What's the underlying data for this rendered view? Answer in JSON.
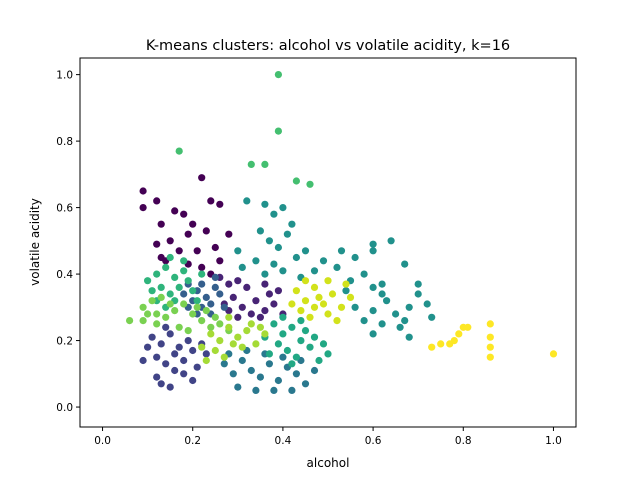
{
  "chart_data": {
    "type": "scatter",
    "title": "K-means clusters: alcohol vs volatile acidity, k=16",
    "xlabel": "alcohol",
    "ylabel": "volatile acidity",
    "xlim": [
      -0.05,
      1.05
    ],
    "ylim": [
      -0.06,
      1.05
    ],
    "xticks": [
      "0.0",
      "0.2",
      "0.4",
      "0.6",
      "0.8",
      "1.0"
    ],
    "yticks": [
      "0.0",
      "0.2",
      "0.4",
      "0.6",
      "0.8",
      "1.0"
    ],
    "grid": false,
    "legend": "none",
    "colormap": "viridis",
    "clusters": [
      {
        "color": "#440154",
        "points": [
          [
            0.09,
            0.65
          ],
          [
            0.12,
            0.62
          ],
          [
            0.09,
            0.6
          ],
          [
            0.13,
            0.55
          ],
          [
            0.16,
            0.59
          ],
          [
            0.18,
            0.58
          ],
          [
            0.22,
            0.69
          ],
          [
            0.24,
            0.62
          ],
          [
            0.2,
            0.55
          ],
          [
            0.26,
            0.61
          ],
          [
            0.15,
            0.5
          ],
          [
            0.19,
            0.52
          ],
          [
            0.23,
            0.53
          ],
          [
            0.25,
            0.48
          ],
          [
            0.21,
            0.47
          ],
          [
            0.13,
            0.45
          ],
          [
            0.17,
            0.47
          ],
          [
            0.12,
            0.49
          ],
          [
            0.28,
            0.52
          ],
          [
            0.26,
            0.44
          ],
          [
            0.19,
            0.43
          ],
          [
            0.22,
            0.42
          ],
          [
            0.24,
            0.4
          ],
          [
            0.14,
            0.44
          ]
        ]
      },
      {
        "color": "#482475",
        "points": [
          [
            0.26,
            0.39
          ],
          [
            0.28,
            0.37
          ],
          [
            0.3,
            0.38
          ],
          [
            0.32,
            0.36
          ],
          [
            0.29,
            0.33
          ],
          [
            0.27,
            0.31
          ],
          [
            0.31,
            0.3
          ],
          [
            0.34,
            0.32
          ],
          [
            0.36,
            0.29
          ],
          [
            0.38,
            0.31
          ],
          [
            0.35,
            0.27
          ],
          [
            0.37,
            0.34
          ],
          [
            0.33,
            0.28
          ],
          [
            0.4,
            0.28
          ],
          [
            0.39,
            0.35
          ],
          [
            0.36,
            0.37
          ],
          [
            0.3,
            0.27
          ],
          [
            0.28,
            0.29
          ]
        ]
      },
      {
        "color": "#414487",
        "points": [
          [
            0.11,
            0.21
          ],
          [
            0.13,
            0.19
          ],
          [
            0.15,
            0.22
          ],
          [
            0.17,
            0.18
          ],
          [
            0.19,
            0.2
          ],
          [
            0.16,
            0.16
          ],
          [
            0.12,
            0.15
          ],
          [
            0.14,
            0.13
          ],
          [
            0.18,
            0.14
          ],
          [
            0.2,
            0.17
          ],
          [
            0.22,
            0.19
          ],
          [
            0.1,
            0.18
          ],
          [
            0.14,
            0.24
          ],
          [
            0.16,
            0.11
          ],
          [
            0.12,
            0.09
          ],
          [
            0.18,
            0.1
          ],
          [
            0.21,
            0.12
          ],
          [
            0.13,
            0.07
          ],
          [
            0.23,
            0.16
          ],
          [
            0.2,
            0.08
          ],
          [
            0.09,
            0.14
          ],
          [
            0.15,
            0.06
          ]
        ]
      },
      {
        "color": "#355f8d",
        "points": [
          [
            0.19,
            0.37
          ],
          [
            0.21,
            0.35
          ],
          [
            0.23,
            0.33
          ],
          [
            0.25,
            0.36
          ],
          [
            0.22,
            0.3
          ],
          [
            0.2,
            0.32
          ],
          [
            0.24,
            0.28
          ],
          [
            0.26,
            0.34
          ],
          [
            0.18,
            0.34
          ],
          [
            0.22,
            0.37
          ],
          [
            0.27,
            0.3
          ],
          [
            0.24,
            0.31
          ],
          [
            0.21,
            0.28
          ],
          [
            0.25,
            0.39
          ],
          [
            0.19,
            0.3
          ]
        ]
      },
      {
        "color": "#2a788e",
        "points": [
          [
            0.27,
            0.13
          ],
          [
            0.29,
            0.1
          ],
          [
            0.31,
            0.14
          ],
          [
            0.33,
            0.11
          ],
          [
            0.35,
            0.09
          ],
          [
            0.37,
            0.13
          ],
          [
            0.39,
            0.08
          ],
          [
            0.41,
            0.12
          ],
          [
            0.43,
            0.1
          ],
          [
            0.3,
            0.06
          ],
          [
            0.34,
            0.05
          ],
          [
            0.38,
            0.05
          ],
          [
            0.45,
            0.07
          ],
          [
            0.47,
            0.11
          ],
          [
            0.36,
            0.16
          ],
          [
            0.32,
            0.17
          ],
          [
            0.28,
            0.16
          ],
          [
            0.4,
            0.15
          ],
          [
            0.44,
            0.14
          ],
          [
            0.42,
            0.05
          ]
        ]
      },
      {
        "color": "#21918c",
        "points": [
          [
            0.32,
            0.62
          ],
          [
            0.36,
            0.61
          ],
          [
            0.38,
            0.58
          ],
          [
            0.4,
            0.6
          ],
          [
            0.42,
            0.55
          ],
          [
            0.35,
            0.53
          ],
          [
            0.37,
            0.5
          ],
          [
            0.39,
            0.48
          ],
          [
            0.41,
            0.52
          ],
          [
            0.43,
            0.45
          ],
          [
            0.45,
            0.47
          ],
          [
            0.3,
            0.47
          ],
          [
            0.34,
            0.44
          ],
          [
            0.38,
            0.43
          ],
          [
            0.36,
            0.4
          ],
          [
            0.31,
            0.42
          ],
          [
            0.4,
            0.41
          ],
          [
            0.47,
            0.41
          ],
          [
            0.49,
            0.44
          ],
          [
            0.44,
            0.39
          ],
          [
            0.52,
            0.42
          ],
          [
            0.55,
            0.38
          ],
          [
            0.6,
            0.36
          ],
          [
            0.62,
            0.34
          ],
          [
            0.58,
            0.4
          ],
          [
            0.54,
            0.35
          ],
          [
            0.56,
            0.3
          ],
          [
            0.6,
            0.29
          ],
          [
            0.63,
            0.32
          ],
          [
            0.65,
            0.28
          ],
          [
            0.67,
            0.26
          ],
          [
            0.7,
            0.34
          ],
          [
            0.73,
            0.27
          ],
          [
            0.68,
            0.3
          ],
          [
            0.6,
            0.22
          ],
          [
            0.62,
            0.25
          ],
          [
            0.66,
            0.24
          ],
          [
            0.72,
            0.31
          ],
          [
            0.64,
            0.5
          ],
          [
            0.67,
            0.43
          ],
          [
            0.62,
            0.37
          ],
          [
            0.7,
            0.37
          ],
          [
            0.56,
            0.45
          ],
          [
            0.6,
            0.49
          ],
          [
            0.6,
            0.47
          ],
          [
            0.53,
            0.47
          ],
          [
            0.58,
            0.26
          ],
          [
            0.68,
            0.21
          ]
        ]
      },
      {
        "color": "#22a884",
        "points": [
          [
            0.38,
            0.25
          ],
          [
            0.4,
            0.22
          ],
          [
            0.42,
            0.24
          ],
          [
            0.44,
            0.2
          ],
          [
            0.46,
            0.18
          ],
          [
            0.41,
            0.17
          ],
          [
            0.39,
            0.19
          ],
          [
            0.43,
            0.15
          ],
          [
            0.45,
            0.23
          ],
          [
            0.47,
            0.21
          ],
          [
            0.37,
            0.16
          ],
          [
            0.49,
            0.19
          ],
          [
            0.48,
            0.14
          ],
          [
            0.36,
            0.21
          ],
          [
            0.42,
            0.13
          ],
          [
            0.5,
            0.16
          ],
          [
            0.44,
            0.26
          ],
          [
            0.4,
            0.27
          ]
        ]
      },
      {
        "color": "#2fb47c",
        "points": [
          [
            0.1,
            0.38
          ],
          [
            0.12,
            0.4
          ],
          [
            0.14,
            0.42
          ],
          [
            0.16,
            0.39
          ],
          [
            0.18,
            0.41
          ],
          [
            0.11,
            0.35
          ],
          [
            0.13,
            0.36
          ],
          [
            0.15,
            0.34
          ],
          [
            0.17,
            0.36
          ],
          [
            0.19,
            0.38
          ],
          [
            0.12,
            0.32
          ],
          [
            0.16,
            0.32
          ],
          [
            0.2,
            0.35
          ],
          [
            0.14,
            0.3
          ],
          [
            0.22,
            0.4
          ],
          [
            0.21,
            0.32
          ],
          [
            0.15,
            0.45
          ],
          [
            0.18,
            0.44
          ]
        ]
      },
      {
        "color": "#44bf70",
        "points": [
          [
            0.39,
            1.0
          ],
          [
            0.39,
            0.83
          ],
          [
            0.17,
            0.77
          ],
          [
            0.33,
            0.73
          ],
          [
            0.36,
            0.73
          ],
          [
            0.43,
            0.68
          ],
          [
            0.46,
            0.67
          ]
        ]
      },
      {
        "color": "#7ad151",
        "points": [
          [
            0.06,
            0.26
          ],
          [
            0.09,
            0.3
          ],
          [
            0.1,
            0.28
          ],
          [
            0.12,
            0.25
          ],
          [
            0.14,
            0.27
          ],
          [
            0.16,
            0.29
          ],
          [
            0.18,
            0.31
          ],
          [
            0.2,
            0.28
          ],
          [
            0.22,
            0.26
          ],
          [
            0.24,
            0.24
          ],
          [
            0.11,
            0.32
          ],
          [
            0.13,
            0.33
          ],
          [
            0.17,
            0.24
          ],
          [
            0.19,
            0.23
          ],
          [
            0.21,
            0.3
          ],
          [
            0.15,
            0.31
          ],
          [
            0.23,
            0.29
          ],
          [
            0.25,
            0.27
          ],
          [
            0.26,
            0.25
          ],
          [
            0.09,
            0.26
          ],
          [
            0.28,
            0.23
          ],
          [
            0.12,
            0.28
          ]
        ]
      },
      {
        "color": "#a5db36",
        "points": [
          [
            0.24,
            0.22
          ],
          [
            0.26,
            0.2
          ],
          [
            0.28,
            0.24
          ],
          [
            0.3,
            0.21
          ],
          [
            0.32,
            0.23
          ],
          [
            0.34,
            0.19
          ],
          [
            0.36,
            0.22
          ],
          [
            0.25,
            0.17
          ],
          [
            0.27,
            0.15
          ],
          [
            0.29,
            0.19
          ],
          [
            0.31,
            0.18
          ],
          [
            0.33,
            0.25
          ],
          [
            0.22,
            0.18
          ],
          [
            0.23,
            0.14
          ],
          [
            0.35,
            0.24
          ],
          [
            0.28,
            0.27
          ]
        ]
      },
      {
        "color": "#d2e21b",
        "points": [
          [
            0.43,
            0.35
          ],
          [
            0.45,
            0.32
          ],
          [
            0.47,
            0.36
          ],
          [
            0.49,
            0.31
          ],
          [
            0.51,
            0.34
          ],
          [
            0.53,
            0.3
          ],
          [
            0.55,
            0.33
          ],
          [
            0.44,
            0.29
          ],
          [
            0.46,
            0.27
          ],
          [
            0.48,
            0.33
          ],
          [
            0.5,
            0.28
          ],
          [
            0.52,
            0.26
          ],
          [
            0.42,
            0.31
          ],
          [
            0.54,
            0.37
          ],
          [
            0.47,
            0.3
          ],
          [
            0.5,
            0.38
          ],
          [
            0.45,
            0.38
          ]
        ]
      },
      {
        "color": "#fde725",
        "points": [
          [
            0.73,
            0.18
          ],
          [
            0.75,
            0.19
          ],
          [
            0.77,
            0.19
          ],
          [
            0.78,
            0.2
          ],
          [
            0.8,
            0.24
          ],
          [
            0.81,
            0.24
          ],
          [
            0.86,
            0.25
          ],
          [
            0.86,
            0.21
          ],
          [
            0.86,
            0.18
          ],
          [
            0.86,
            0.15
          ],
          [
            1.0,
            0.16
          ],
          [
            0.79,
            0.22
          ]
        ]
      }
    ]
  }
}
